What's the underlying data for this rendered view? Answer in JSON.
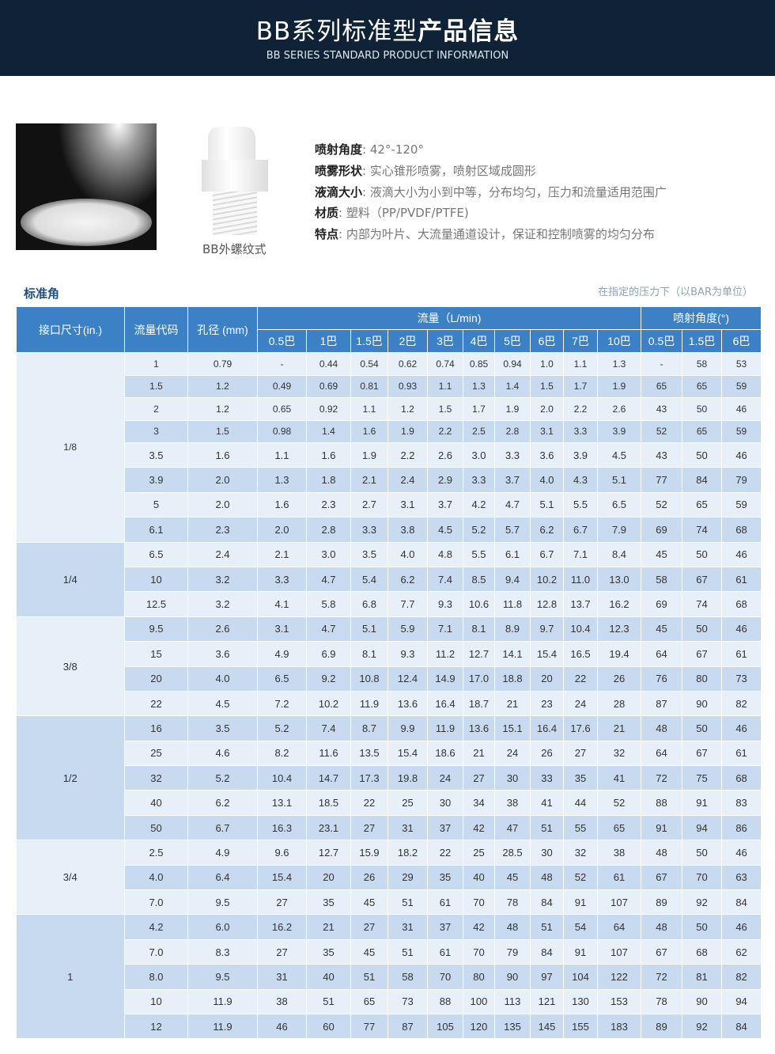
{
  "header": {
    "title_light": "BB系列标准型",
    "title_bold": "产品信息",
    "subtitle": "BB SERIES STANDARD PRODUCT INFORMATION"
  },
  "product": {
    "caption": "BB外螺纹式",
    "specs": [
      {
        "label": "喷射角度",
        "value": ": 42°-120°"
      },
      {
        "label": "喷雾形状",
        "value": ": 实心锥形喷雾，喷射区域成圆形"
      },
      {
        "label": "液滴大小",
        "value": ": 液滴大小为小到中等，分布均匀，压力和流量适用范围广"
      },
      {
        "label": "材质",
        "value": ": 塑料（PP/PVDF/PTFE)"
      },
      {
        "label": "特点",
        "value": ": 内部为叶片、大流量通道设计，保证和控制喷雾的均匀分布"
      }
    ]
  },
  "section": {
    "title": "标准角",
    "note": "在指定的压力下（以BAR为单位）"
  },
  "table": {
    "headers": {
      "size": "接口尺寸(in.)",
      "code": "流量代码",
      "orifice": "孔径 (mm)",
      "flow": "流量（L/min)",
      "angle": "喷射角度(°)"
    },
    "flow_pressures": [
      "0.5巴",
      "1巴",
      "1.5巴",
      "2巴",
      "3巴",
      "4巴",
      "5巴",
      "6巴",
      "7巴",
      "10巴"
    ],
    "angle_pressures": [
      "0.5巴",
      "1.5巴",
      "6巴"
    ],
    "groups": [
      {
        "size": "1/8",
        "rows": [
          [
            "1",
            "0.79",
            "-",
            "0.44",
            "0.54",
            "0.62",
            "0.74",
            "0.85",
            "0.94",
            "1.0",
            "1.1",
            "1.3",
            "-",
            "58",
            "53"
          ],
          [
            "1.5",
            "1.2",
            "0.49",
            "0.69",
            "0.81",
            "0.93",
            "1.1",
            "1.3",
            "1.4",
            "1.5",
            "1.7",
            "1.9",
            "65",
            "65",
            "59"
          ],
          [
            "2",
            "1.2",
            "0.65",
            "0.92",
            "1.1",
            "1.2",
            "1.5",
            "1.7",
            "1.9",
            "2.0",
            "2.2",
            "2.6",
            "43",
            "50",
            "46"
          ],
          [
            "3",
            "1.5",
            "0.98",
            "1.4",
            "1.6",
            "1.9",
            "2.2",
            "2.5",
            "2.8",
            "3.1",
            "3.3",
            "3.9",
            "52",
            "65",
            "59"
          ],
          [
            "3.5",
            "1.6",
            "1.1",
            "1.6",
            "1.9",
            "2.2",
            "2.6",
            "3.0",
            "3.3",
            "3.6",
            "3.9",
            "4.5",
            "43",
            "50",
            "46"
          ],
          [
            "3.9",
            "2.0",
            "1.3",
            "1.8",
            "2.1",
            "2.4",
            "2.9",
            "3.3",
            "3.7",
            "4.0",
            "4.3",
            "5.1",
            "77",
            "84",
            "79"
          ],
          [
            "5",
            "2.0",
            "1.6",
            "2.3",
            "2.7",
            "3.1",
            "3.7",
            "4.2",
            "4.7",
            "5.1",
            "5.5",
            "6.5",
            "52",
            "65",
            "59"
          ],
          [
            "6.1",
            "2.3",
            "2.0",
            "2.8",
            "3.3",
            "3.8",
            "4.5",
            "5.2",
            "5.7",
            "6.2",
            "6.7",
            "7.9",
            "69",
            "74",
            "68"
          ]
        ]
      },
      {
        "size": "1/4",
        "rows": [
          [
            "6.5",
            "2.4",
            "2.1",
            "3.0",
            "3.5",
            "4.0",
            "4.8",
            "5.5",
            "6.1",
            "6.7",
            "7.1",
            "8.4",
            "45",
            "50",
            "46"
          ],
          [
            "10",
            "3.2",
            "3.3",
            "4.7",
            "5.4",
            "6.2",
            "7.4",
            "8.5",
            "9.4",
            "10.2",
            "11.0",
            "13.0",
            "58",
            "67",
            "61"
          ],
          [
            "12.5",
            "3.2",
            "4.1",
            "5.8",
            "6.8",
            "7.7",
            "9.3",
            "10.6",
            "11.8",
            "12.8",
            "13.7",
            "16.2",
            "69",
            "74",
            "68"
          ]
        ]
      },
      {
        "size": "3/8",
        "rows": [
          [
            "9.5",
            "2.6",
            "3.1",
            "4.7",
            "5.1",
            "5.9",
            "7.1",
            "8.1",
            "8.9",
            "9.7",
            "10.4",
            "12.3",
            "45",
            "50",
            "46"
          ],
          [
            "15",
            "3.6",
            "4.9",
            "6.9",
            "8.1",
            "9.3",
            "11.2",
            "12.7",
            "14.1",
            "15.4",
            "16.5",
            "19.4",
            "64",
            "67",
            "61"
          ],
          [
            "20",
            "4.0",
            "6.5",
            "9.2",
            "10.8",
            "12.4",
            "14.9",
            "17.0",
            "18.8",
            "20",
            "22",
            "26",
            "76",
            "80",
            "73"
          ],
          [
            "22",
            "4.5",
            "7.2",
            "10.2",
            "11.9",
            "13.6",
            "16.4",
            "18.7",
            "21",
            "23",
            "24",
            "28",
            "87",
            "90",
            "82"
          ]
        ]
      },
      {
        "size": "1/2",
        "rows": [
          [
            "16",
            "3.5",
            "5.2",
            "7.4",
            "8.7",
            "9.9",
            "11.9",
            "13.6",
            "15.1",
            "16.4",
            "17.6",
            "21",
            "48",
            "50",
            "46"
          ],
          [
            "25",
            "4.6",
            "8.2",
            "11.6",
            "13.5",
            "15.4",
            "18.6",
            "21",
            "24",
            "26",
            "27",
            "32",
            "64",
            "67",
            "61"
          ],
          [
            "32",
            "5.2",
            "10.4",
            "14.7",
            "17.3",
            "19.8",
            "24",
            "27",
            "30",
            "33",
            "35",
            "41",
            "72",
            "75",
            "68"
          ],
          [
            "40",
            "6.2",
            "13.1",
            "18.5",
            "22",
            "25",
            "30",
            "34",
            "38",
            "41",
            "44",
            "52",
            "88",
            "91",
            "83"
          ],
          [
            "50",
            "6.7",
            "16.3",
            "23.1",
            "27",
            "31",
            "37",
            "42",
            "47",
            "51",
            "55",
            "65",
            "91",
            "94",
            "86"
          ]
        ]
      },
      {
        "size": "3/4",
        "rows": [
          [
            "2.5",
            "4.9",
            "9.6",
            "12.7",
            "15.9",
            "18.2",
            "22",
            "25",
            "28.5",
            "30",
            "32",
            "38",
            "48",
            "50",
            "46"
          ],
          [
            "4.0",
            "6.4",
            "15.4",
            "20",
            "26",
            "29",
            "35",
            "40",
            "45",
            "48",
            "52",
            "61",
            "67",
            "70",
            "63"
          ],
          [
            "7.0",
            "9.5",
            "27",
            "35",
            "45",
            "51",
            "61",
            "70",
            "78",
            "84",
            "91",
            "107",
            "89",
            "92",
            "84"
          ]
        ]
      },
      {
        "size": "1",
        "rows": [
          [
            "4.2",
            "6.0",
            "16.2",
            "21",
            "27",
            "31",
            "37",
            "42",
            "48",
            "51",
            "54",
            "64",
            "48",
            "50",
            "46"
          ],
          [
            "7.0",
            "8.3",
            "27",
            "35",
            "45",
            "51",
            "61",
            "70",
            "79",
            "84",
            "91",
            "107",
            "67",
            "68",
            "62"
          ],
          [
            "8.0",
            "9.5",
            "31",
            "40",
            "51",
            "58",
            "70",
            "80",
            "90",
            "97",
            "104",
            "122",
            "72",
            "81",
            "82"
          ],
          [
            "10",
            "11.9",
            "38",
            "51",
            "65",
            "73",
            "88",
            "100",
            "113",
            "121",
            "130",
            "153",
            "78",
            "90",
            "94"
          ],
          [
            "12",
            "11.9",
            "46",
            "60",
            "77",
            "87",
            "105",
            "120",
            "135",
            "145",
            "155",
            "183",
            "89",
            "92",
            "84"
          ]
        ]
      }
    ]
  },
  "colors": {
    "banner": "#0f2236",
    "header": "#3c81c6",
    "row_light": "#e7eff9",
    "row_dark": "#c8daf0",
    "section_title": "#1f4f82"
  }
}
